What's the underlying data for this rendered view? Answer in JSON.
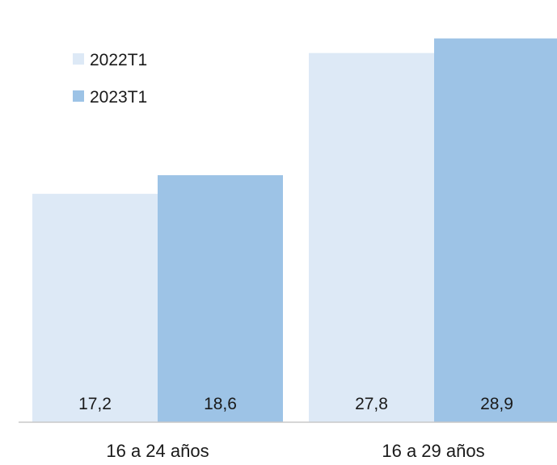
{
  "chart_data": {
    "type": "bar",
    "title": "",
    "xlabel": "",
    "ylabel": "",
    "categories": [
      "16 a 24 años",
      "16 a 29 años"
    ],
    "series": [
      {
        "name": "2022T1",
        "values": [
          17.2,
          27.8
        ],
        "labels": [
          "17,2",
          "27,8"
        ],
        "color": "#dde9f6"
      },
      {
        "name": "2023T1",
        "values": [
          18.6,
          28.9
        ],
        "labels": [
          "18,6",
          "28,9"
        ],
        "color": "#9dc3e6"
      }
    ],
    "ylim": [
      0,
      30
    ],
    "grid": false,
    "legend_position": "top-left",
    "colors": {
      "axis": "#c8c8c8",
      "text": "#1a1a1a"
    }
  }
}
